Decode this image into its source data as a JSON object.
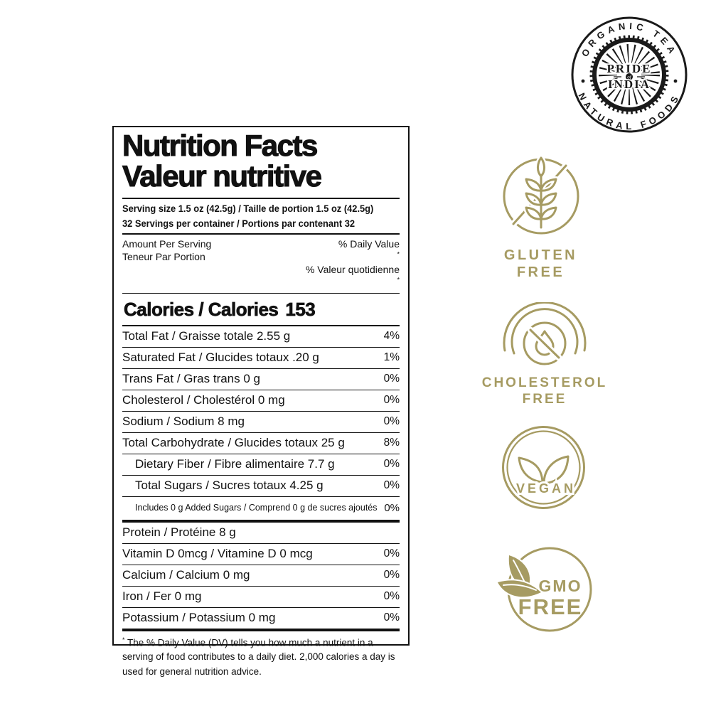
{
  "colors": {
    "badge_gold": "#a69b62",
    "label_black": "#111111"
  },
  "logo": {
    "arc_top": "ORGANIC TEA",
    "arc_bottom": "NATURAL FOODS",
    "center_top": "PRIDE",
    "center_mid": "of",
    "center_bottom": "INDIA"
  },
  "badges": {
    "gluten": {
      "line1": "GLUTEN",
      "line2": "FREE"
    },
    "cholesterol": {
      "line1": "CHOLESTEROL",
      "line2": "FREE"
    },
    "vegan": {
      "label": "VEGAN"
    },
    "gmo": {
      "line1": "GMO",
      "line2": "FREE"
    }
  },
  "label": {
    "title_line1": "Nutrition Facts",
    "title_line2": "Valeur nutritive",
    "serving_size": "Serving size 1.5 oz (42.5g) / Taille de portion 1.5 oz (42.5g)",
    "servings_per_container": "32 Servings per container / Portions par contenant 32",
    "amount_en": "Amount Per Serving",
    "amount_fr": "Teneur Par Portion",
    "dv_en": "% Daily Value",
    "dv_fr": "% Valeur quotidienne",
    "dv_asterisk": "*",
    "calories_label": "Calories / Calories",
    "calories_value": "153",
    "rows": [
      {
        "label": "Total Fat / Graisse totale 2.55 g",
        "dv": "4%",
        "indent": 0
      },
      {
        "label": "Saturated Fat / Glucides totaux .20 g",
        "dv": "1%",
        "indent": 0
      },
      {
        "label": "Trans Fat / Gras trans 0 g",
        "dv": "0%",
        "indent": 0
      },
      {
        "label": "Cholesterol / Cholestérol 0 mg",
        "dv": "0%",
        "indent": 0
      },
      {
        "label": "Sodium / Sodium 8 mg",
        "dv": "0%",
        "indent": 0
      },
      {
        "label": "Total Carbohydrate / Glucides totaux 25 g",
        "dv": "8%",
        "indent": 0
      },
      {
        "label": "Dietary Fiber / Fibre alimentaire 7.7 g",
        "dv": "0%",
        "indent": 1
      },
      {
        "label": "Total Sugars / Sucres totaux 4.25 g",
        "dv": "0%",
        "indent": 1
      },
      {
        "label": "Includes 0 g Added Sugars / Comprend 0 g de sucres ajoutés",
        "dv": "0%",
        "indent": 1,
        "small": true,
        "thick_after": true
      },
      {
        "label": "Protein / Protéine 8 g",
        "dv": "",
        "indent": 0
      },
      {
        "label": "Vitamin D 0mcg / Vitamine D 0 mcg",
        "dv": "0%",
        "indent": 0
      },
      {
        "label": "Calcium / Calcium 0 mg",
        "dv": "0%",
        "indent": 0
      },
      {
        "label": "Iron / Fer 0 mg",
        "dv": "0%",
        "indent": 0
      },
      {
        "label": "Potassium / Potassium 0 mg",
        "dv": "0%",
        "indent": 0,
        "thick_after": true
      }
    ],
    "footnote_asterisk": "*",
    "footnote": "The % Daily Value (DV) tells you how much a nutrient in a serving of food contributes to a daily diet. 2,000 calories a day is used for general nutrition advice."
  }
}
